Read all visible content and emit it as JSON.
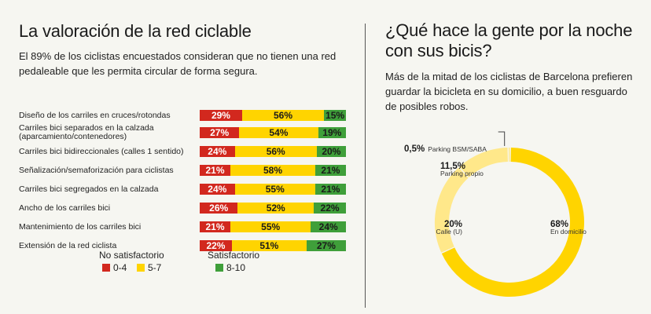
{
  "left": {
    "title": "La valoración de la red ciclable",
    "subtitle": "El 89% de los ciclistas encuestados consideran que no tienen una red pedaleable que les permita circular de forma segura."
  },
  "right": {
    "title": "¿Qué hace la gente por la noche con sus bicis?",
    "subtitle": "Más de la mitad de los ciclistas de Barcelona prefieren guardar la bicicleta en su domicilio, a buen resguardo de posibles robos."
  },
  "legend": {
    "no_satisfactorio": "No satisfactorio",
    "satisfactorio": "Satisfactorio",
    "range_red": "0-4",
    "range_yellow": "5-7",
    "range_green": "8-10"
  },
  "colors": {
    "red": "#d2281e",
    "yellow": "#ffd400",
    "green": "#3f9f3a",
    "donut_light": "#ffe88a"
  },
  "chart_data": [
    {
      "type": "bar",
      "stacked": true,
      "orientation": "horizontal",
      "categories": [
        "Diseño de los carriles en cruces/rotondas",
        "Carriles bici separados en la calzada (aparcamiento/contenedores)",
        "Carriles bici bidireccionales (calles 1 sentido)",
        "Señalización/semaforización para ciclistas",
        "Carriles bici segregados en la calzada",
        "Ancho de los carriles bici",
        "Mantenimiento de los carriles bici",
        "Extensión de la red ciclista"
      ],
      "series": [
        {
          "name": "0-4",
          "color": "#d2281e",
          "values": [
            29,
            27,
            24,
            21,
            24,
            26,
            21,
            22
          ],
          "labels": [
            "29%",
            "27%",
            "24%",
            "21%",
            "24%",
            "26%",
            "21%",
            "22%"
          ]
        },
        {
          "name": "5-7",
          "color": "#ffd400",
          "values": [
            56,
            54,
            56,
            58,
            55,
            52,
            55,
            51
          ],
          "labels": [
            "56%",
            "54%",
            "56%",
            "58%",
            "55%",
            "52%",
            "55%",
            "51%"
          ]
        },
        {
          "name": "8-10",
          "color": "#3f9f3a",
          "values": [
            15,
            19,
            20,
            21,
            21,
            22,
            24,
            27
          ],
          "labels": [
            "15%",
            "19%",
            "20%",
            "21%",
            "21%",
            "22%",
            "24%",
            "27%"
          ]
        }
      ]
    },
    {
      "type": "pie",
      "donut": true,
      "slices": [
        {
          "name": "En domicilio",
          "value": 68,
          "label": "68%",
          "color": "#ffd400"
        },
        {
          "name": "Calle (U)",
          "value": 20,
          "label": "20%",
          "color": "#ffe88a"
        },
        {
          "name": "Parking propio",
          "value": 11.5,
          "label": "11,5%",
          "color": "#ffe88a"
        },
        {
          "name": "Parking BSM/SABA",
          "value": 0.5,
          "label": "0,5%",
          "color": "#ffe88a"
        }
      ]
    }
  ]
}
